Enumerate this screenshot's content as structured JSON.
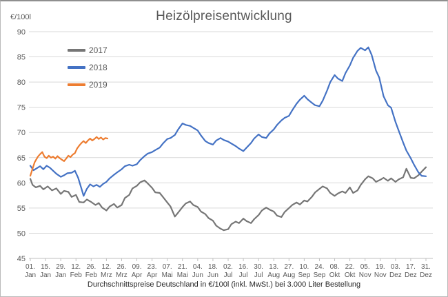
{
  "title": "Heizölpreisentwicklung",
  "y_axis_unit": "€/100l",
  "caption": "Durchschnittspreise Deutschland in €/100l (inkl. MwSt.) bei 3.000 Liter Bestellung",
  "colors": {
    "series_2017": "#767676",
    "series_2018": "#4472C4",
    "series_2019": "#ED7D31",
    "gridline": "#d9d9d9",
    "axis_line": "#bfbfbf",
    "tick_text": "#595959",
    "title_text": "#595959"
  },
  "chart_data": {
    "type": "line",
    "title": "Heizölpreisentwicklung",
    "ylabel": "€/100l",
    "xlabel": "",
    "ylim": [
      45,
      90
    ],
    "y_ticks": [
      45,
      50,
      55,
      60,
      65,
      70,
      75,
      80,
      85,
      90
    ],
    "x_range_days": [
      0,
      364
    ],
    "grid": true,
    "legend_position": "top-left",
    "x_ticks": [
      {
        "day": "01.",
        "month": "Jan"
      },
      {
        "day": "15.",
        "month": "Jan"
      },
      {
        "day": "29.",
        "month": "Jan"
      },
      {
        "day": "12.",
        "month": "Feb"
      },
      {
        "day": "26.",
        "month": "Feb"
      },
      {
        "day": "12.",
        "month": "Mrz"
      },
      {
        "day": "26.",
        "month": "Mrz"
      },
      {
        "day": "09.",
        "month": "Apr"
      },
      {
        "day": "23.",
        "month": "Apr"
      },
      {
        "day": "07.",
        "month": "Mai"
      },
      {
        "day": "21.",
        "month": "Mai"
      },
      {
        "day": "04.",
        "month": "Jun"
      },
      {
        "day": "18.",
        "month": "Jun"
      },
      {
        "day": "02.",
        "month": "Jul"
      },
      {
        "day": "16.",
        "month": "Jul"
      },
      {
        "day": "30.",
        "month": "Jul"
      },
      {
        "day": "13.",
        "month": "Aug"
      },
      {
        "day": "27.",
        "month": "Aug"
      },
      {
        "day": "10.",
        "month": "Sep"
      },
      {
        "day": "24.",
        "month": "Sep"
      },
      {
        "day": "08.",
        "month": "Okt"
      },
      {
        "day": "22.",
        "month": "Okt"
      },
      {
        "day": "05.",
        "month": "Nov"
      },
      {
        "day": "19.",
        "month": "Nov"
      },
      {
        "day": "03.",
        "month": "Dez"
      },
      {
        "day": "17.",
        "month": "Dez"
      },
      {
        "day": "31.",
        "month": "Dez"
      }
    ],
    "series": [
      {
        "name": "2017",
        "color": "#767676",
        "points": [
          [
            0,
            60.8
          ],
          [
            2,
            59.6
          ],
          [
            5,
            59.1
          ],
          [
            9,
            59.4
          ],
          [
            12,
            58.7
          ],
          [
            16,
            59.3
          ],
          [
            20,
            58.5
          ],
          [
            24,
            58.9
          ],
          [
            28,
            57.8
          ],
          [
            31,
            58.4
          ],
          [
            35,
            58.2
          ],
          [
            38,
            57.2
          ],
          [
            42,
            57.6
          ],
          [
            45,
            56.2
          ],
          [
            49,
            56.1
          ],
          [
            52,
            56.7
          ],
          [
            56,
            56.2
          ],
          [
            60,
            55.6
          ],
          [
            63,
            56.0
          ],
          [
            66,
            55.1
          ],
          [
            70,
            54.5
          ],
          [
            73,
            55.3
          ],
          [
            77,
            55.8
          ],
          [
            80,
            55.1
          ],
          [
            84,
            55.6
          ],
          [
            87,
            57.0
          ],
          [
            91,
            57.6
          ],
          [
            94,
            58.9
          ],
          [
            98,
            59.4
          ],
          [
            101,
            60.1
          ],
          [
            105,
            60.5
          ],
          [
            108,
            59.9
          ],
          [
            112,
            59.0
          ],
          [
            115,
            58.1
          ],
          [
            119,
            58.0
          ],
          [
            122,
            57.2
          ],
          [
            126,
            56.1
          ],
          [
            129,
            55.3
          ],
          [
            133,
            53.3
          ],
          [
            136,
            54.1
          ],
          [
            140,
            55.2
          ],
          [
            143,
            55.9
          ],
          [
            147,
            56.3
          ],
          [
            150,
            55.6
          ],
          [
            154,
            55.2
          ],
          [
            157,
            54.3
          ],
          [
            161,
            53.8
          ],
          [
            164,
            53.0
          ],
          [
            168,
            52.5
          ],
          [
            171,
            51.5
          ],
          [
            175,
            50.9
          ],
          [
            178,
            50.6
          ],
          [
            182,
            50.8
          ],
          [
            185,
            51.8
          ],
          [
            189,
            52.3
          ],
          [
            192,
            52.0
          ],
          [
            196,
            52.9
          ],
          [
            199,
            52.4
          ],
          [
            203,
            52.0
          ],
          [
            206,
            52.8
          ],
          [
            210,
            53.6
          ],
          [
            213,
            54.5
          ],
          [
            217,
            55.1
          ],
          [
            220,
            54.7
          ],
          [
            224,
            54.3
          ],
          [
            227,
            53.5
          ],
          [
            231,
            53.2
          ],
          [
            234,
            54.2
          ],
          [
            238,
            55.0
          ],
          [
            241,
            55.6
          ],
          [
            245,
            56.1
          ],
          [
            248,
            55.7
          ],
          [
            252,
            56.5
          ],
          [
            255,
            56.3
          ],
          [
            259,
            57.2
          ],
          [
            262,
            58.1
          ],
          [
            266,
            58.8
          ],
          [
            269,
            59.3
          ],
          [
            273,
            58.9
          ],
          [
            276,
            58.0
          ],
          [
            280,
            57.4
          ],
          [
            283,
            57.9
          ],
          [
            287,
            58.3
          ],
          [
            290,
            58.0
          ],
          [
            294,
            59.1
          ],
          [
            297,
            58.0
          ],
          [
            301,
            58.5
          ],
          [
            304,
            59.6
          ],
          [
            308,
            60.7
          ],
          [
            311,
            61.3
          ],
          [
            315,
            60.9
          ],
          [
            318,
            60.2
          ],
          [
            322,
            60.6
          ],
          [
            325,
            61.0
          ],
          [
            329,
            60.4
          ],
          [
            332,
            60.9
          ],
          [
            336,
            60.2
          ],
          [
            339,
            60.7
          ],
          [
            343,
            61.1
          ],
          [
            346,
            62.8
          ],
          [
            350,
            61.0
          ],
          [
            353,
            60.9
          ],
          [
            357,
            61.5
          ],
          [
            360,
            62.2
          ],
          [
            364,
            63.1
          ]
        ]
      },
      {
        "name": "2018",
        "color": "#4472C4",
        "points": [
          [
            0,
            63.4
          ],
          [
            3,
            62.5
          ],
          [
            6,
            62.9
          ],
          [
            9,
            63.3
          ],
          [
            12,
            62.7
          ],
          [
            15,
            63.4
          ],
          [
            18,
            63.0
          ],
          [
            21,
            62.4
          ],
          [
            24,
            61.8
          ],
          [
            28,
            61.2
          ],
          [
            31,
            61.5
          ],
          [
            34,
            61.9
          ],
          [
            38,
            62.0
          ],
          [
            41,
            62.4
          ],
          [
            44,
            61.0
          ],
          [
            47,
            58.9
          ],
          [
            49,
            57.4
          ],
          [
            52,
            58.8
          ],
          [
            55,
            59.7
          ],
          [
            58,
            59.3
          ],
          [
            61,
            59.6
          ],
          [
            64,
            59.2
          ],
          [
            67,
            59.8
          ],
          [
            70,
            60.2
          ],
          [
            73,
            60.9
          ],
          [
            77,
            61.6
          ],
          [
            80,
            62.1
          ],
          [
            84,
            62.7
          ],
          [
            87,
            63.3
          ],
          [
            91,
            63.6
          ],
          [
            94,
            63.4
          ],
          [
            98,
            63.7
          ],
          [
            101,
            64.5
          ],
          [
            105,
            65.3
          ],
          [
            108,
            65.8
          ],
          [
            112,
            66.1
          ],
          [
            115,
            66.5
          ],
          [
            119,
            67.0
          ],
          [
            122,
            67.8
          ],
          [
            126,
            68.7
          ],
          [
            129,
            68.9
          ],
          [
            133,
            69.5
          ],
          [
            136,
            70.6
          ],
          [
            140,
            71.8
          ],
          [
            143,
            71.5
          ],
          [
            147,
            71.3
          ],
          [
            150,
            70.9
          ],
          [
            154,
            70.4
          ],
          [
            157,
            69.4
          ],
          [
            161,
            68.3
          ],
          [
            164,
            67.9
          ],
          [
            168,
            67.6
          ],
          [
            171,
            68.4
          ],
          [
            175,
            68.9
          ],
          [
            178,
            68.5
          ],
          [
            182,
            68.2
          ],
          [
            185,
            67.8
          ],
          [
            189,
            67.3
          ],
          [
            192,
            66.8
          ],
          [
            196,
            66.3
          ],
          [
            199,
            67.0
          ],
          [
            203,
            67.9
          ],
          [
            206,
            68.8
          ],
          [
            210,
            69.6
          ],
          [
            213,
            69.1
          ],
          [
            217,
            68.9
          ],
          [
            220,
            69.8
          ],
          [
            224,
            70.6
          ],
          [
            227,
            71.5
          ],
          [
            231,
            72.4
          ],
          [
            234,
            72.9
          ],
          [
            238,
            73.3
          ],
          [
            241,
            74.4
          ],
          [
            245,
            75.7
          ],
          [
            248,
            76.5
          ],
          [
            252,
            77.3
          ],
          [
            255,
            76.6
          ],
          [
            259,
            75.9
          ],
          [
            262,
            75.4
          ],
          [
            266,
            75.2
          ],
          [
            269,
            76.3
          ],
          [
            273,
            78.3
          ],
          [
            276,
            80.0
          ],
          [
            280,
            81.4
          ],
          [
            283,
            80.7
          ],
          [
            287,
            80.2
          ],
          [
            290,
            81.8
          ],
          [
            294,
            83.3
          ],
          [
            297,
            84.8
          ],
          [
            301,
            86.2
          ],
          [
            304,
            86.8
          ],
          [
            308,
            86.3
          ],
          [
            311,
            86.9
          ],
          [
            314,
            85.4
          ],
          [
            318,
            82.3
          ],
          [
            321,
            80.9
          ],
          [
            325,
            77.2
          ],
          [
            329,
            75.4
          ],
          [
            332,
            74.9
          ],
          [
            336,
            72.1
          ],
          [
            339,
            70.3
          ],
          [
            343,
            68.0
          ],
          [
            346,
            66.4
          ],
          [
            350,
            64.9
          ],
          [
            353,
            63.6
          ],
          [
            357,
            62.1
          ],
          [
            360,
            61.4
          ],
          [
            364,
            61.3
          ]
        ]
      },
      {
        "name": "2019",
        "color": "#ED7D31",
        "points": [
          [
            0,
            61.4
          ],
          [
            2,
            62.8
          ],
          [
            4,
            64.1
          ],
          [
            7,
            65.2
          ],
          [
            9,
            65.7
          ],
          [
            11,
            66.1
          ],
          [
            13,
            65.2
          ],
          [
            15,
            64.9
          ],
          [
            17,
            65.4
          ],
          [
            19,
            65.0
          ],
          [
            21,
            65.2
          ],
          [
            23,
            64.8
          ],
          [
            25,
            65.3
          ],
          [
            27,
            64.9
          ],
          [
            29,
            64.6
          ],
          [
            31,
            64.3
          ],
          [
            33,
            64.8
          ],
          [
            35,
            65.4
          ],
          [
            37,
            65.1
          ],
          [
            39,
            65.6
          ],
          [
            41,
            65.9
          ],
          [
            43,
            66.8
          ],
          [
            45,
            67.4
          ],
          [
            47,
            67.9
          ],
          [
            49,
            68.3
          ],
          [
            51,
            67.9
          ],
          [
            53,
            68.4
          ],
          [
            55,
            68.8
          ],
          [
            57,
            68.4
          ],
          [
            59,
            68.7
          ],
          [
            61,
            69.1
          ],
          [
            63,
            68.7
          ],
          [
            65,
            69.0
          ],
          [
            67,
            68.6
          ],
          [
            69,
            68.9
          ],
          [
            71,
            68.8
          ]
        ]
      }
    ]
  }
}
